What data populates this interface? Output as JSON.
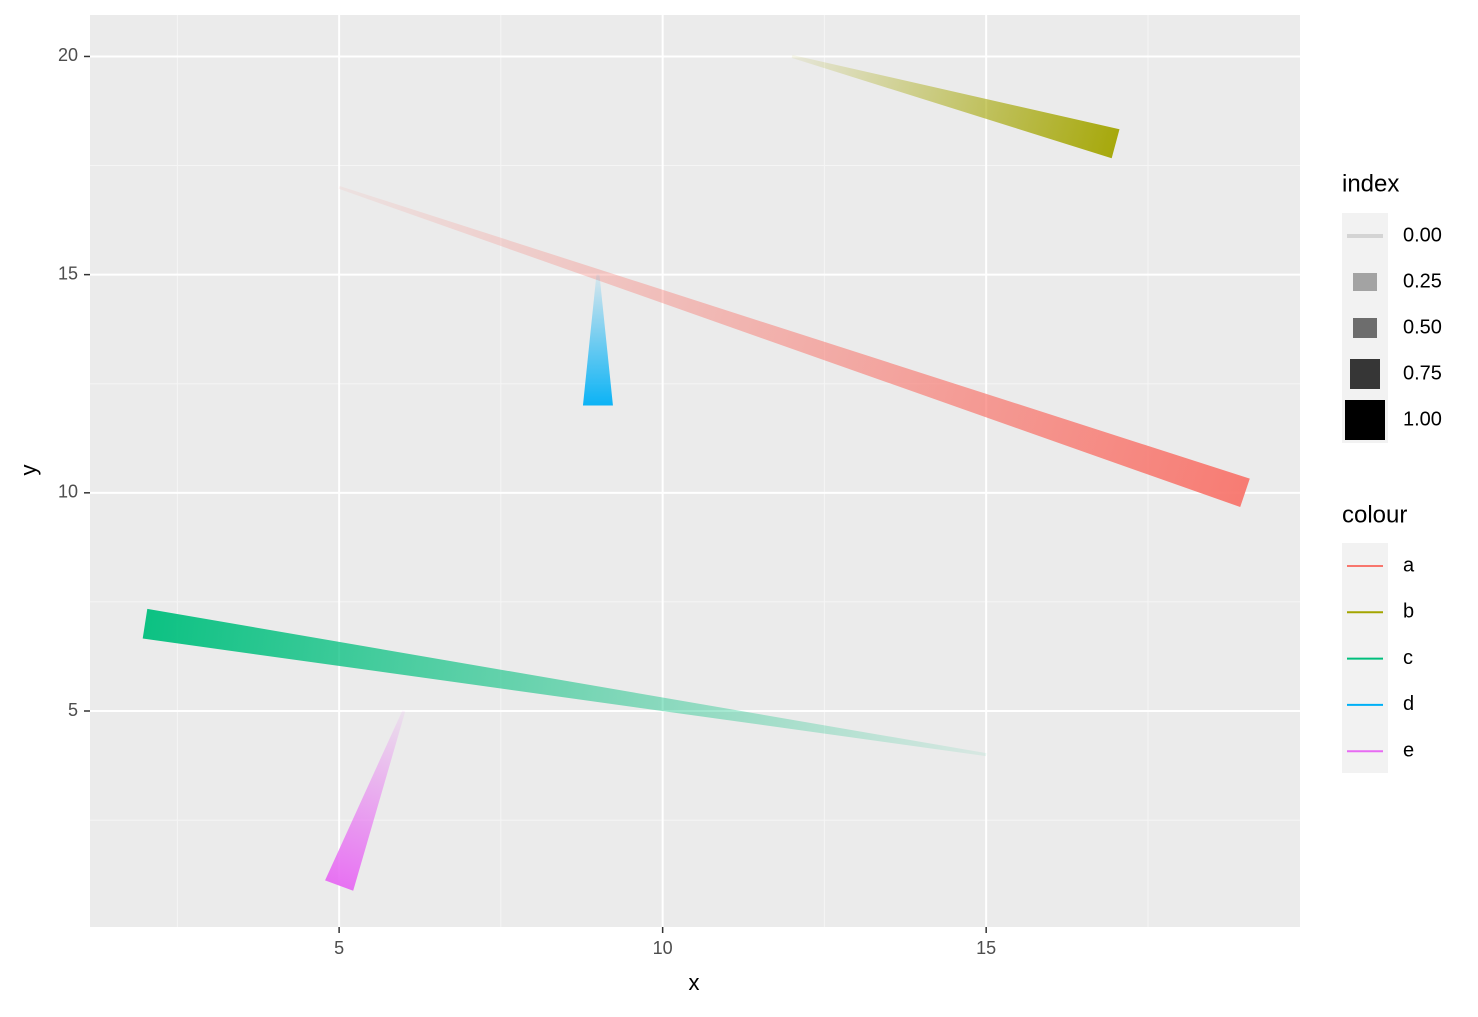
{
  "chart_data": {
    "type": "link",
    "x_label": "x",
    "y_label": "y",
    "xlim": [
      1.15,
      19.85
    ],
    "ylim": [
      0.05,
      20.95
    ],
    "xticks": [
      5,
      10,
      15
    ],
    "yticks": [
      5,
      10,
      15,
      20
    ],
    "xminor": [
      2.5,
      7.5,
      12.5,
      17.5
    ],
    "yminor": [
      2.5,
      7.5,
      12.5,
      17.5
    ],
    "grid": true,
    "legend_position": "right",
    "index_legend": {
      "title": "index",
      "ticks": [
        {
          "value": 0,
          "label": "0.00"
        },
        {
          "value": 0.25,
          "label": "0.25"
        },
        {
          "value": 0.5,
          "label": "0.50"
        },
        {
          "value": 0.75,
          "label": "0.75"
        },
        {
          "value": 1,
          "label": "1.00"
        }
      ]
    },
    "colour_legend_title": "colour",
    "series": [
      {
        "name": "a",
        "color": "#F8766D",
        "x": [
          5,
          19
        ],
        "y": [
          17,
          10
        ]
      },
      {
        "name": "b",
        "color": "#A3A500",
        "x": [
          12,
          17
        ],
        "y": [
          20,
          18
        ]
      },
      {
        "name": "c",
        "color": "#00BF7D",
        "x": [
          15,
          2
        ],
        "y": [
          4,
          7
        ]
      },
      {
        "name": "d",
        "color": "#00B0F6",
        "x": [
          9,
          9
        ],
        "y": [
          15,
          12
        ]
      },
      {
        "name": "e",
        "color": "#E76BF3",
        "x": [
          6,
          5
        ],
        "y": [
          5,
          1
        ]
      }
    ]
  }
}
